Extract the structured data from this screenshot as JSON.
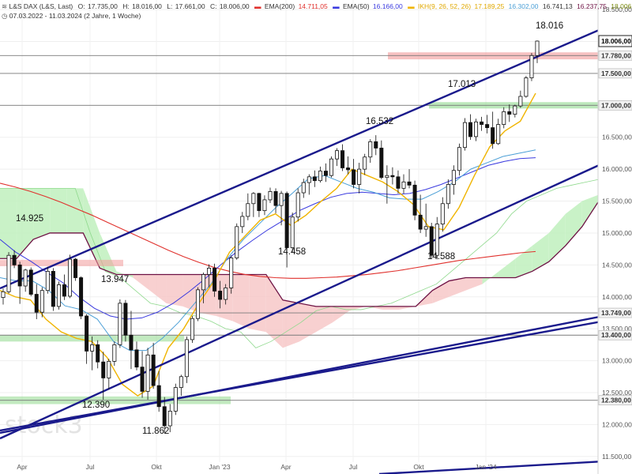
{
  "header": {
    "symbol_label": "L&S DAX (L&S, Last)",
    "ohlc": {
      "open_label": "O:",
      "open": "17.735,00",
      "high_label": "H:",
      "high": "18.016,00",
      "low_label": "L:",
      "low": "17.661,00",
      "close_label": "C:",
      "close": "18.006,00"
    },
    "ema200_label": "EMA(200)",
    "ema200_value": "14.711,05",
    "ema50_label": "EMA(50)",
    "ema50_value": "16.166,00",
    "ikh_label": "IKH(9, 26, 52, 26)",
    "ikh_values": [
      "17.189,25",
      "16.302,00",
      "16.741,13",
      "16.237,75",
      "18.006,00"
    ],
    "range_label": "07.03.2022 - 11.03.2024  (2 Jahre, 1 Woche)"
  },
  "watermark": "stock3",
  "colors": {
    "up_candle": "#ffffff",
    "down_candle": "#111111",
    "candle_outline": "#111111",
    "ema200": "#e0312d",
    "ema50": "#3a3adf",
    "tenkan": "#f0b400",
    "kijun": "#4b9fd6",
    "chikou": "#9aa020",
    "senkou_b": "#6e1244",
    "cloud_bull": "#bff0bd",
    "cloud_bear": "#f7c8c8",
    "resistance_zone": "#f29a9a",
    "support_zone": "#8fd98d",
    "trend_line": "#1a1a8c",
    "level_line": "#7a7a7a"
  },
  "chart_data": {
    "type": "candlestick",
    "title": "L&S DAX (L&S, Last)",
    "xlabel": "",
    "ylabel": "",
    "ylim": [
      11250,
      18600
    ],
    "y_ticks": [
      11500,
      12000,
      12500,
      13000,
      13500,
      14000,
      14500,
      15000,
      15500,
      16000,
      16500,
      17000,
      17500,
      18000,
      18500
    ],
    "y_tick_labels": [
      "11.500,00",
      "12.000,00",
      "12.500,00",
      "13.000,00",
      "13.500,00",
      "14.000,00",
      "14.500,00",
      "15.000,00",
      "15.500,00",
      "16.000,00",
      "16.500,00",
      "17.000,00",
      "17.500,00",
      "18.000,00",
      "18.500,00"
    ],
    "x_ticks": [
      {
        "label": "Apr",
        "week": 4
      },
      {
        "label": "Jul",
        "week": 17
      },
      {
        "label": "Okt",
        "week": 30
      },
      {
        "label": "Jan '23",
        "week": 43
      },
      {
        "label": "Apr",
        "week": 56
      },
      {
        "label": "Jul",
        "week": 69
      },
      {
        "label": "Okt",
        "week": 82
      },
      {
        "label": "Jan '24",
        "week": 95
      }
    ],
    "weeks_visible": 115,
    "candles": [
      [
        13990,
        14130,
        13880,
        14080
      ],
      [
        14080,
        14700,
        14050,
        14650
      ],
      [
        14650,
        14730,
        14450,
        14500
      ],
      [
        14500,
        14550,
        13890,
        14170
      ],
      [
        14170,
        14440,
        14080,
        14420
      ],
      [
        14420,
        14460,
        14010,
        14040
      ],
      [
        14040,
        14200,
        13650,
        13760
      ],
      [
        13760,
        14150,
        13680,
        14100
      ],
      [
        14100,
        14470,
        14050,
        14400
      ],
      [
        14400,
        14450,
        13780,
        13850
      ],
      [
        13850,
        14240,
        13800,
        14190
      ],
      [
        14190,
        14350,
        13950,
        14010
      ],
      [
        14010,
        14660,
        13980,
        14590
      ],
      [
        14590,
        14610,
        14250,
        14300
      ],
      [
        14300,
        14320,
        13650,
        13700
      ],
      [
        13700,
        13730,
        12950,
        13150
      ],
      [
        13150,
        13380,
        12850,
        13250
      ],
      [
        13250,
        13320,
        12880,
        12980
      ],
      [
        12980,
        13140,
        12390,
        12730
      ],
      [
        12730,
        13030,
        12550,
        12990
      ],
      [
        12990,
        13300,
        12920,
        13250
      ],
      [
        13250,
        13960,
        13200,
        13900
      ],
      [
        13900,
        13950,
        13300,
        13400
      ],
      [
        13400,
        13780,
        12870,
        13170
      ],
      [
        13170,
        13300,
        12850,
        12900
      ],
      [
        12900,
        13150,
        12420,
        12520
      ],
      [
        12520,
        13200,
        12390,
        13090
      ],
      [
        13090,
        13280,
        12560,
        12610
      ],
      [
        12610,
        12840,
        12200,
        12280
      ],
      [
        12280,
        12430,
        11862,
        11980
      ],
      [
        11980,
        12320,
        11880,
        12210
      ],
      [
        12210,
        12640,
        12150,
        12580
      ],
      [
        12580,
        12780,
        12450,
        12750
      ],
      [
        12750,
        13380,
        12650,
        13330
      ],
      [
        13330,
        13700,
        13280,
        13660
      ],
      [
        13660,
        14150,
        13620,
        14110
      ],
      [
        14110,
        14380,
        13900,
        14350
      ],
      [
        14350,
        14510,
        14150,
        14450
      ],
      [
        14450,
        14520,
        14000,
        14090
      ],
      [
        14090,
        14250,
        13820,
        13960
      ],
      [
        13960,
        14200,
        13880,
        14140
      ],
      [
        14140,
        14650,
        14050,
        14610
      ],
      [
        14610,
        15150,
        14580,
        15100
      ],
      [
        15100,
        15330,
        15000,
        15260
      ],
      [
        15260,
        15620,
        15200,
        15460
      ],
      [
        15460,
        15640,
        15250,
        15620
      ],
      [
        15620,
        15630,
        15250,
        15350
      ],
      [
        15350,
        15590,
        15280,
        15520
      ],
      [
        15520,
        15710,
        15470,
        15650
      ],
      [
        15650,
        15700,
        15310,
        15430
      ],
      [
        15430,
        15660,
        15120,
        15620
      ],
      [
        15620,
        15650,
        14460,
        14770
      ],
      [
        14770,
        15320,
        14700,
        15250
      ],
      [
        15250,
        15700,
        15180,
        15630
      ],
      [
        15630,
        15850,
        15550,
        15790
      ],
      [
        15790,
        15920,
        15600,
        15880
      ],
      [
        15880,
        15980,
        15720,
        15820
      ],
      [
        15820,
        16040,
        15790,
        15970
      ],
      [
        15970,
        16090,
        15800,
        15900
      ],
      [
        15900,
        16200,
        15870,
        16160
      ],
      [
        16160,
        16330,
        16050,
        16290
      ],
      [
        16290,
        16390,
        15970,
        16020
      ],
      [
        16020,
        16200,
        15920,
        15990
      ],
      [
        15990,
        16160,
        15700,
        15760
      ],
      [
        15760,
        16100,
        15620,
        16000
      ],
      [
        16000,
        16240,
        15910,
        16190
      ],
      [
        16190,
        16470,
        16100,
        16430
      ],
      [
        16430,
        16532,
        16220,
        16330
      ],
      [
        16330,
        16450,
        15840,
        15870
      ],
      [
        15870,
        16060,
        15460,
        15900
      ],
      [
        15900,
        16030,
        15760,
        15880
      ],
      [
        15880,
        15980,
        15620,
        15700
      ],
      [
        15700,
        15920,
        15620,
        15800
      ],
      [
        15800,
        16000,
        15700,
        15750
      ],
      [
        15750,
        15820,
        15200,
        15280
      ],
      [
        15280,
        15600,
        15000,
        15060
      ],
      [
        15060,
        15460,
        14940,
        15100
      ],
      [
        15100,
        15160,
        14600,
        14650
      ],
      [
        14650,
        15250,
        14588,
        15140
      ],
      [
        15140,
        15560,
        15020,
        15460
      ],
      [
        15460,
        15840,
        15380,
        15760
      ],
      [
        15760,
        16060,
        15600,
        15980
      ],
      [
        15980,
        16400,
        15900,
        16340
      ],
      [
        16340,
        16800,
        16290,
        16730
      ],
      [
        16730,
        16860,
        16460,
        16510
      ],
      [
        16510,
        16790,
        16440,
        16740
      ],
      [
        16740,
        16820,
        16600,
        16700
      ],
      [
        16700,
        16850,
        16560,
        16650
      ],
      [
        16650,
        16900,
        16320,
        16400
      ],
      [
        16400,
        16790,
        16380,
        16700
      ],
      [
        16700,
        16970,
        16640,
        16900
      ],
      [
        16900,
        17013,
        16740,
        16860
      ],
      [
        16860,
        17010,
        16810,
        16990
      ],
      [
        16990,
        17230,
        16960,
        17140
      ],
      [
        17140,
        17460,
        17120,
        17430
      ],
      [
        17430,
        17820,
        17380,
        17780
      ],
      [
        17780,
        18016,
        17661,
        18006
      ]
    ],
    "candle_start_week": 0,
    "annotations": [
      {
        "text": "14.925",
        "week": 6,
        "value": 14925
      },
      {
        "text": "13.947",
        "week": 27,
        "value": 13947
      },
      {
        "text": "12.390",
        "week": 22,
        "value": 12390
      },
      {
        "text": "11.862",
        "week": 36,
        "value": 11862
      },
      {
        "text": "14.458",
        "week": 71,
        "value": 14458
      },
      {
        "text": "16.532",
        "week": 93,
        "value": 16532
      },
      {
        "text": "14.588",
        "week": 108,
        "value": 14588
      },
      {
        "text": "17.013",
        "week": 116,
        "value": 17013
      },
      {
        "text": "18.016",
        "week": 134,
        "value": 18016
      }
    ],
    "levels": [
      {
        "value": 17780,
        "label": "17.780,00",
        "style": "resistance"
      },
      {
        "value": 17500,
        "label": "17.500,00",
        "style": "plain"
      },
      {
        "value": 17000,
        "label": "17.000,00",
        "style": "support"
      },
      {
        "value": 13749,
        "label": "13.749,00",
        "style": "plain"
      },
      {
        "value": 13400,
        "label": "13.400,00",
        "style": "support"
      },
      {
        "value": 12380,
        "label": "12.380,00",
        "style": "support"
      }
    ],
    "last_price": {
      "value": 18006,
      "label": "18.006,00"
    },
    "series": [
      {
        "name": "EMA(200)",
        "values": [
          15780,
          15720,
          15650,
          15570,
          15480,
          15380,
          15280,
          15170,
          15060,
          14950,
          14840,
          14730,
          14630,
          14540,
          14460,
          14400,
          14350,
          14320,
          14300,
          14290,
          14290,
          14300,
          14310,
          14330,
          14350,
          14380,
          14410,
          14450,
          14490,
          14530,
          14570,
          14600,
          14630,
          14660,
          14690,
          14710
        ]
      },
      {
        "name": "EMA(50)",
        "values": [
          14900,
          14700,
          14550,
          14380,
          14220,
          14000,
          13820,
          13700,
          13650,
          13670,
          13760,
          13900,
          14080,
          14280,
          14500,
          14700,
          14880,
          15050,
          15200,
          15350,
          15460,
          15560,
          15620,
          15640,
          15620,
          15600,
          15620,
          15680,
          15760,
          15860,
          15960,
          16060,
          16120,
          16166,
          16180
        ]
      },
      {
        "name": "Kijun",
        "values": [
          14300,
          14250,
          14250,
          14100,
          13860,
          13800,
          13650,
          13300,
          13160,
          13160,
          13350,
          13600,
          13900,
          14200,
          14600,
          14900,
          15150,
          15400,
          15620,
          15850,
          15900,
          15800,
          15700,
          15640,
          15550,
          15530,
          15530,
          15650,
          15800,
          16000,
          16100,
          16200,
          16250,
          16302
        ]
      },
      {
        "name": "Tenkan",
        "values": [
          14100,
          14000,
          13950,
          13650,
          13450,
          13350,
          13300,
          13050,
          12630,
          12450,
          12600,
          13200,
          13500,
          13900,
          14250,
          14700,
          14950,
          15200,
          15300,
          15120,
          15280,
          15500,
          15700,
          16000,
          15900,
          15800,
          15650,
          15450,
          15100,
          15050,
          15400,
          15900,
          16350,
          16600,
          16750,
          17189
        ]
      },
      {
        "name": "Senkou A",
        "values": [
          15700,
          15700,
          15700,
          15700,
          15700,
          15700,
          15000,
          14400,
          14300,
          14100,
          13900,
          13850,
          13750,
          13700,
          13620,
          13500,
          13450,
          13200,
          13300,
          13450,
          13600,
          13780,
          13850,
          13800,
          13800,
          13850,
          13900,
          14000,
          14100,
          14200,
          14400,
          14600,
          14800,
          15000,
          15300,
          15500,
          15600,
          15700,
          15750,
          15800,
          15850,
          15900,
          15950
        ]
      },
      {
        "name": "Senkou B",
        "values": [
          14600,
          14600,
          14900,
          15000,
          15000,
          15000,
          14450,
          14350,
          14350,
          14350,
          14350,
          14350,
          14350,
          14350,
          14350,
          14350,
          14350,
          13950,
          13900,
          13850,
          13850,
          13850,
          13850,
          13850,
          13850,
          13850,
          14100,
          14250,
          14300,
          14300,
          14300,
          14300,
          14400,
          14550,
          14800,
          15100,
          15500,
          15600,
          15600
        ]
      }
    ]
  }
}
